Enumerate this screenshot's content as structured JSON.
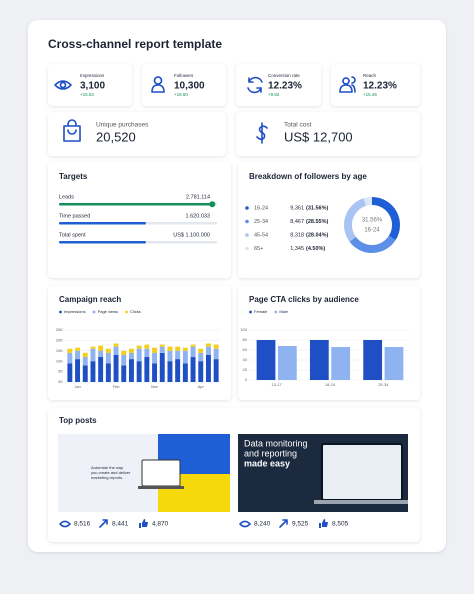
{
  "title": "Cross-channel report template",
  "kpis": [
    {
      "label": "Impressions",
      "value": "3,100",
      "change": "+15.53"
    },
    {
      "label": "Followers",
      "value": "10,300",
      "change": "+18.60"
    },
    {
      "label": "Conversion rate",
      "value": "12.23%",
      "change": "+9.82"
    },
    {
      "label": "Reach",
      "value": "12.23%",
      "change": "+15.45"
    }
  ],
  "totals": [
    {
      "label": "Unique purchases",
      "value": "20,520"
    },
    {
      "label": "Total cost",
      "value": "US$ 12,700"
    }
  ],
  "targets": {
    "title": "Targets",
    "items": [
      {
        "label": "Leads",
        "value": "2.781.114",
        "progress": 97,
        "color": "#14905a"
      },
      {
        "label": "Time passed",
        "value": "1.620.033",
        "progress": 55,
        "color": "#1f5fd6"
      },
      {
        "label": "Total spent",
        "value": "US$ 1.100.000",
        "progress": 55,
        "color": "#1f5fd6"
      }
    ]
  },
  "age_breakdown": {
    "title": "Breakdown of followers by age",
    "center_value": "31.56%",
    "center_label": "16-24",
    "rows": [
      {
        "label": "16-24",
        "count": "9,361",
        "share": 31.56,
        "share_label": "(31.56%)",
        "color": "#1f5fd6"
      },
      {
        "label": "25-34",
        "count": "8,467",
        "share": 28.55,
        "share_label": "(28.55%)",
        "color": "#5b8fe8"
      },
      {
        "label": "45-54",
        "count": "8,318",
        "share": 28.04,
        "share_label": "(28.04%)",
        "color": "#a9c4f3"
      },
      {
        "label": "65+",
        "count": "1,345",
        "share": 4.5,
        "share_label": "(4.50%)",
        "color": "#dbe6fb"
      }
    ]
  },
  "campaign_reach": {
    "type": "bar",
    "stacked": true,
    "title": "Campaign reach",
    "categories": [
      null,
      "Jan",
      null,
      null,
      null,
      null,
      "Feb",
      null,
      null,
      null,
      null,
      "Mar",
      null,
      null,
      null,
      null,
      null,
      "Apr",
      null,
      null
    ],
    "series": [
      {
        "name": "Impressions",
        "color": "#1f4fc4",
        "values": [
          9000,
          11000,
          8000,
          10000,
          12000,
          9000,
          13000,
          8000,
          11000,
          10000,
          12000,
          9000,
          14000,
          10000,
          11000,
          9000,
          12000,
          10000,
          13000,
          11000
        ]
      },
      {
        "name": "Page views",
        "color": "#8fb2f0",
        "values": [
          5000,
          4000,
          4000,
          6000,
          3000,
          5000,
          4000,
          5000,
          3000,
          6000,
          4000,
          5000,
          3000,
          5000,
          4000,
          6000,
          5000,
          4000,
          4000,
          5000
        ]
      },
      {
        "name": "Clicks",
        "color": "#f2cf1d",
        "values": [
          2000,
          1500,
          2000,
          1000,
          2500,
          2000,
          1500,
          2000,
          2000,
          1500,
          2000,
          2500,
          1000,
          2000,
          2000,
          1500,
          1000,
          2000,
          1500,
          2000
        ]
      }
    ],
    "ylim": [
      0,
      25000
    ],
    "yticks": [
      {
        "value": 0,
        "label": "0K"
      },
      {
        "value": 5000,
        "label": "5K"
      },
      {
        "value": 10000,
        "label": "10K"
      },
      {
        "value": 15000,
        "label": "15K"
      },
      {
        "value": 20000,
        "label": "20K"
      },
      {
        "value": 25000,
        "label": "25K"
      }
    ],
    "grid": true
  },
  "cta_clicks": {
    "type": "bar",
    "title": "Page CTA clicks by audience",
    "categories": [
      "13-17",
      "18-24",
      "25-34"
    ],
    "series": [
      {
        "name": "Female",
        "color": "#1f4fc4",
        "values": [
          80,
          80,
          80
        ]
      },
      {
        "name": "Male",
        "color": "#8fb2f0",
        "values": [
          68,
          66,
          66
        ]
      }
    ],
    "ylim": [
      0,
      100
    ],
    "yticks": [
      0,
      20,
      40,
      60,
      80,
      100
    ],
    "grid": true
  },
  "top_posts": {
    "title": "Top posts",
    "posts": [
      {
        "image_text": [
          "Automate the way",
          "you create and deliver",
          "marketing reports."
        ],
        "views": "8,516",
        "shares": "8,441",
        "likes": "4,870"
      },
      {
        "image_text": [
          "Data monitoring",
          "and reporting"
        ],
        "image_highlight": "made easy",
        "views": "8,240",
        "shares": "9,525",
        "likes": "8,505"
      }
    ]
  }
}
